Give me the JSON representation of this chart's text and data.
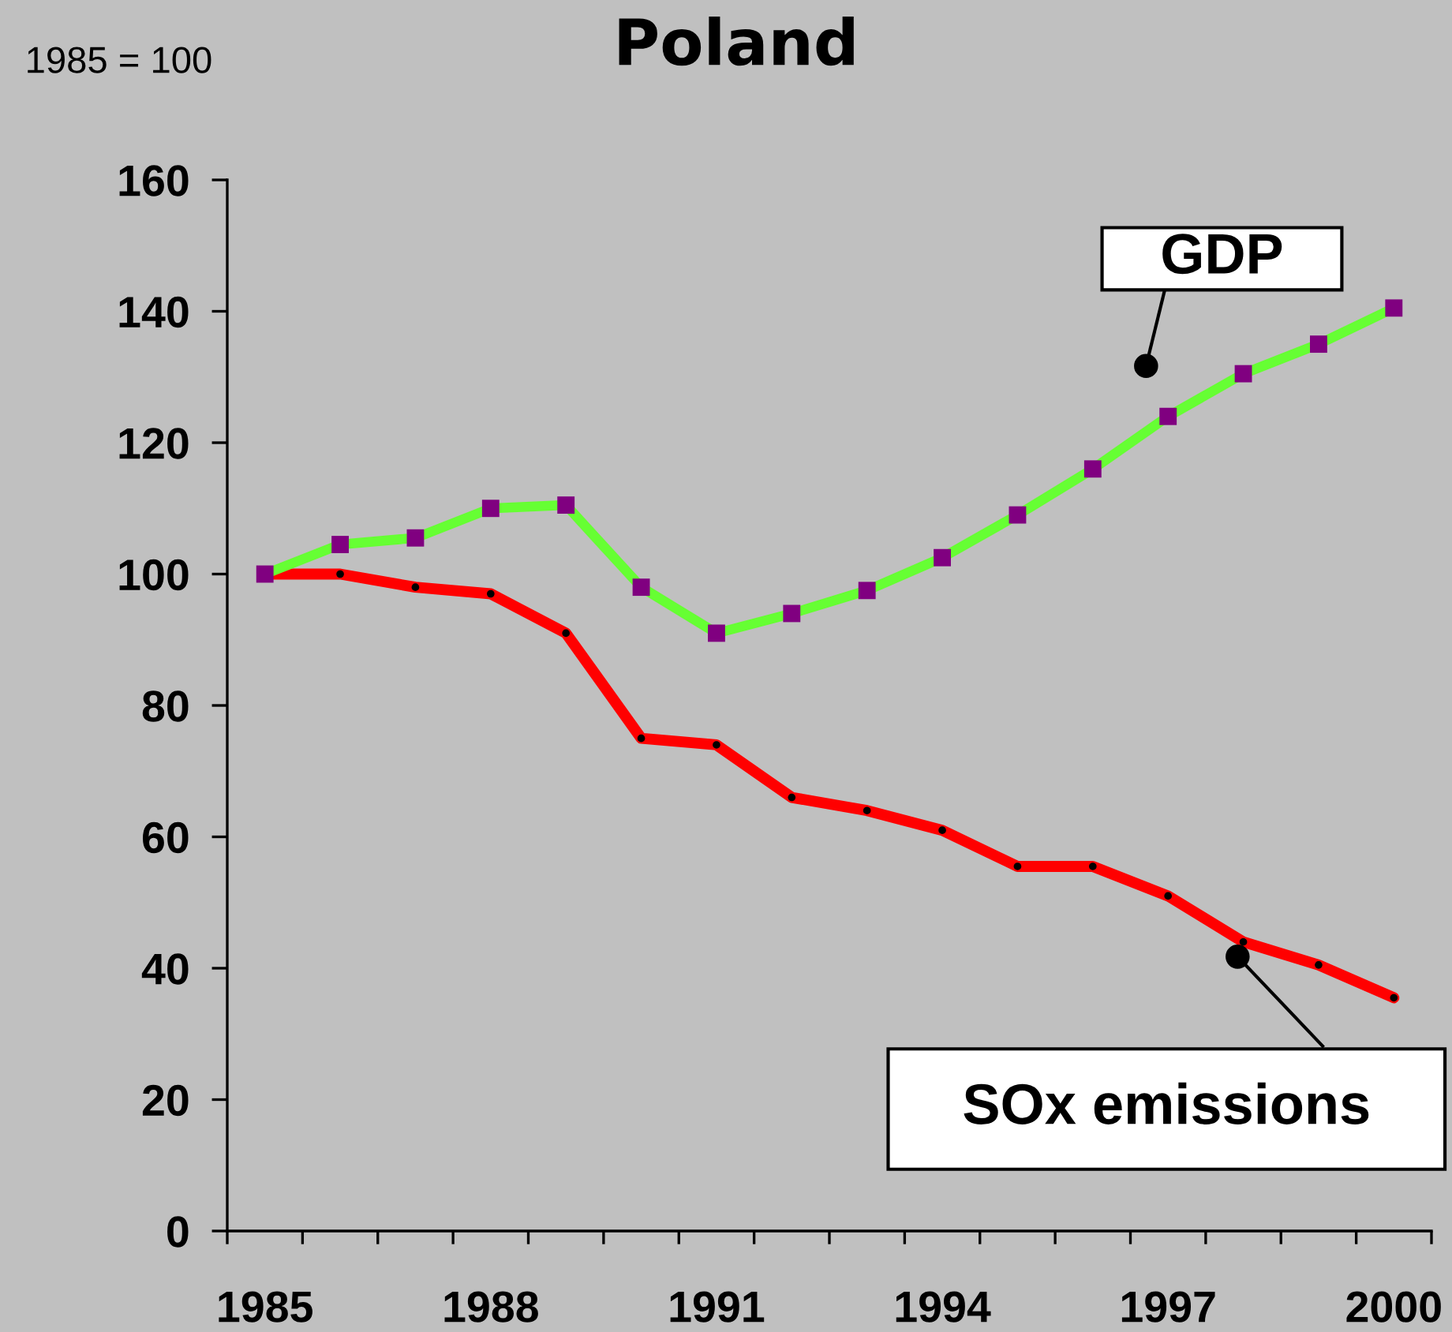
{
  "chart_data": {
    "type": "line",
    "title": "Poland",
    "ylabel": "1985 = 100",
    "categories": [
      "1985",
      null,
      null,
      "1988",
      null,
      null,
      "1991",
      null,
      null,
      "1994",
      null,
      null,
      "1997",
      null,
      null,
      "2000"
    ],
    "ylim": [
      0,
      160
    ],
    "yticks": [
      0,
      20,
      40,
      60,
      80,
      100,
      120,
      140,
      160
    ],
    "series": [
      {
        "name": "GDP",
        "color": "#66ff33",
        "marker": "square",
        "colors": [
          "#800080",
          "#800080",
          "#800080",
          "#800080",
          "#800080",
          "#800080",
          "#800080",
          "#800080",
          "#800080",
          "#800080",
          "#800080",
          "#800080",
          "#800080",
          "#800080",
          "#800080",
          "#800080"
        ],
        "values": [
          100,
          104.5,
          105.5,
          110,
          110.5,
          98,
          91,
          94,
          97.5,
          102.5,
          109,
          116,
          124,
          130.5,
          135,
          140.5
        ]
      },
      {
        "name": "SOx emissions",
        "color": "#ff0000",
        "marker": "circle",
        "colors": [
          "#000000",
          "#000000",
          "#000000",
          "#000000",
          "#000000",
          "#000000",
          "#000000",
          "#000000",
          "#000000",
          "#000000",
          "#000000",
          "#000000",
          "#000000",
          "#000000",
          "#000000",
          "#000000"
        ],
        "values": [
          100,
          100,
          98,
          97,
          91,
          75,
          74,
          66,
          64,
          61,
          55.5,
          55.5,
          51,
          44,
          40.5,
          35.5
        ]
      }
    ]
  }
}
